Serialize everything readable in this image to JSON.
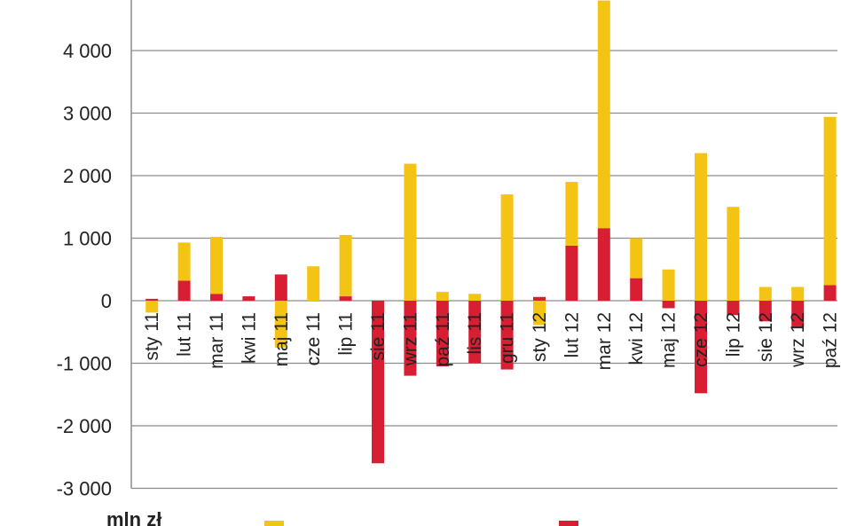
{
  "chart_data": {
    "type": "bar",
    "stacked": true,
    "unit_label": "mln zł",
    "categories": [
      "sty 11",
      "lut 11",
      "mar 11",
      "kwi 11",
      "maj 11",
      "cze 11",
      "lip 11",
      "sie 11",
      "wrz 11",
      "paź 11",
      "lis 11",
      "gru 11",
      "sty 12",
      "lut 12",
      "mar 12",
      "kwi 12",
      "maj 12",
      "cze 12",
      "lip 12",
      "sie 12",
      "wrz 12",
      "paź 12"
    ],
    "y_ticks": [
      {
        "value": 4000,
        "label": "4 000"
      },
      {
        "value": 3000,
        "label": "3 000"
      },
      {
        "value": 2000,
        "label": "2 000"
      },
      {
        "value": 1000,
        "label": "1 000"
      },
      {
        "value": 0,
        "label": "0"
      },
      {
        "value": -1000,
        "label": "-1 000"
      },
      {
        "value": -2000,
        "label": "-2 000"
      },
      {
        "value": -3000,
        "label": "-3 000"
      }
    ],
    "ylim": [
      -3000,
      4800
    ],
    "grid": true,
    "series": [
      {
        "color": "#d81e32",
        "values": [
          30,
          320,
          110,
          70,
          420,
          0,
          70,
          -2600,
          -1200,
          -1050,
          -1000,
          -1100,
          60,
          880,
          1160,
          360,
          -120,
          -1480,
          -230,
          -330,
          -420,
          250
        ]
      },
      {
        "color": "#f4c414",
        "values": [
          -190,
          610,
          910,
          0,
          -750,
          550,
          980,
          0,
          2190,
          140,
          110,
          1700,
          -390,
          1020,
          3640,
          640,
          500,
          2360,
          1500,
          220,
          220,
          2690
        ]
      }
    ]
  },
  "legend": {
    "items": [
      "",
      ""
    ]
  }
}
